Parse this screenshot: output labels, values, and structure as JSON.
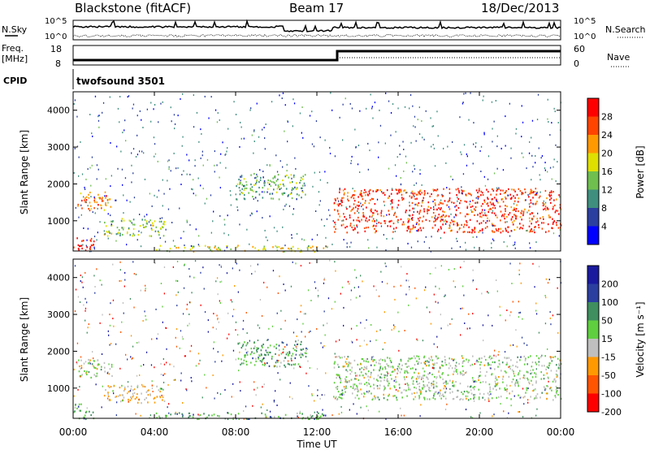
{
  "header": {
    "station": "Blackstone (fitACF)",
    "beam": "Beam 17",
    "date": "18/Dec/2013"
  },
  "nsky_panel": {
    "left_label": "N.Sky",
    "left_ticks": [
      "10^5",
      "10^0"
    ],
    "right_label": "N.Search",
    "right_ticks": [
      "10^5",
      "10^0"
    ]
  },
  "freq_panel": {
    "left_label_top": "Freq.",
    "left_label_bottom": "[MHz]",
    "left_ticks": [
      "18",
      "8"
    ],
    "right_label": "Nave",
    "right_ticks": [
      "60",
      "0"
    ]
  },
  "cpid_panel": {
    "label": "CPID",
    "program": "twofsound 3501"
  },
  "power_panel": {
    "ylabel": "Slant Range [km]",
    "colorbar_label": "Power [dB]",
    "colorbar_ticks": [
      "28",
      "24",
      "20",
      "16",
      "12",
      "8",
      "4"
    ]
  },
  "velocity_panel": {
    "ylabel": "Slant Range [km]",
    "colorbar_label": "Velocity [m s⁻¹]",
    "colorbar_ticks": [
      "200",
      "100",
      "50",
      "15",
      "-15",
      "-50",
      "-100",
      "-200"
    ]
  },
  "xaxis": {
    "label": "Time UT",
    "ticks": [
      "00:00",
      "04:00",
      "08:00",
      "12:00",
      "16:00",
      "20:00",
      "00:00"
    ]
  },
  "colors": {
    "power_scale": [
      "#0000ff",
      "#2b3fa0",
      "#3f8f7f",
      "#6fbf4f",
      "#dfdf00",
      "#ff9900",
      "#ff4400",
      "#ff0000"
    ],
    "velocity_scale": [
      "#1a1a9f",
      "#2b3fa0",
      "#3f8f5f",
      "#5fcf3f",
      "#bfbfbf",
      "#ff9900",
      "#ff5500",
      "#ff0000"
    ]
  },
  "chart_data": [
    {
      "type": "heatmap",
      "title": "Power",
      "x_unit": "hours UT",
      "xlim": [
        0,
        24
      ],
      "ylim": [
        180,
        4500
      ],
      "yticks": [
        1000,
        2000,
        3000,
        4000
      ],
      "colorbar_range": [
        0,
        30
      ],
      "features": [
        {
          "t0": 0.0,
          "t1": 1.0,
          "r0": 180,
          "r1": 600,
          "level": 28
        },
        {
          "t0": 0.2,
          "t1": 1.9,
          "r0": 1300,
          "r1": 1800,
          "level": 22
        },
        {
          "t0": 1.5,
          "t1": 4.5,
          "r0": 600,
          "r1": 1100,
          "level": 14
        },
        {
          "t0": 4.0,
          "t1": 12.5,
          "r0": 180,
          "r1": 350,
          "level": 16
        },
        {
          "t0": 8.0,
          "t1": 11.5,
          "r0": 1600,
          "r1": 2300,
          "level": 12
        },
        {
          "t0": 12.8,
          "t1": 24.0,
          "r0": 700,
          "r1": 1900,
          "level": 26
        }
      ]
    },
    {
      "type": "heatmap",
      "title": "Velocity",
      "x_unit": "hours UT",
      "xlim": [
        0,
        24
      ],
      "ylim": [
        180,
        4500
      ],
      "yticks": [
        1000,
        2000,
        3000,
        4000
      ],
      "colorbar_range": [
        -200,
        200
      ],
      "features": [
        {
          "t0": 0.0,
          "t1": 1.0,
          "r0": 180,
          "r1": 600,
          "level": 50
        },
        {
          "t0": 0.2,
          "t1": 1.9,
          "r0": 1300,
          "r1": 1800,
          "level": 0
        },
        {
          "t0": 1.5,
          "t1": 4.5,
          "r0": 600,
          "r1": 1100,
          "level": -50
        },
        {
          "t0": 4.0,
          "t1": 12.5,
          "r0": 180,
          "r1": 350,
          "level": 50
        },
        {
          "t0": 8.0,
          "t1": 11.5,
          "r0": 1600,
          "r1": 2300,
          "level": 50
        },
        {
          "t0": 12.8,
          "t1": 24.0,
          "r0": 700,
          "r1": 1900,
          "level": 0
        }
      ]
    }
  ]
}
